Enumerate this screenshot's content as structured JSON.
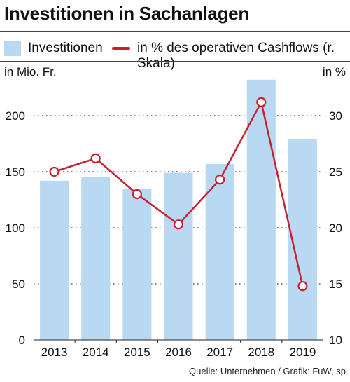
{
  "title": "Investitionen in Sachanlagen",
  "legend": {
    "bar_label": "Investitionen",
    "line_label": "in % des operativen Cashflows (r. Skala)"
  },
  "left_unit": "in Mio. Fr.",
  "right_unit": "in %",
  "source": "Quelle: Unternehmen / Grafik: FuW, sp",
  "colors": {
    "bar": "#b8d9f1",
    "line": "#c8202e"
  },
  "chart_data": {
    "type": "bar",
    "categories": [
      "2013",
      "2014",
      "2015",
      "2016",
      "2017",
      "2018",
      "2019"
    ],
    "series": [
      {
        "name": "Investitionen",
        "type": "bar",
        "axis": "left",
        "values": [
          142,
          145,
          135,
          149,
          157,
          232,
          179
        ]
      },
      {
        "name": "in % des operativen Cashflows (r. Skala)",
        "type": "line",
        "axis": "right",
        "values": [
          25.0,
          26.2,
          23.0,
          20.3,
          24.3,
          31.2,
          14.8
        ]
      }
    ],
    "ylim_left": [
      0,
      250
    ],
    "yticks_left": [
      0,
      50,
      100,
      150,
      200
    ],
    "ylim_right": [
      10,
      35
    ],
    "yticks_right": [
      10,
      15,
      20,
      25,
      30
    ],
    "grid": "dotted horizontal"
  }
}
